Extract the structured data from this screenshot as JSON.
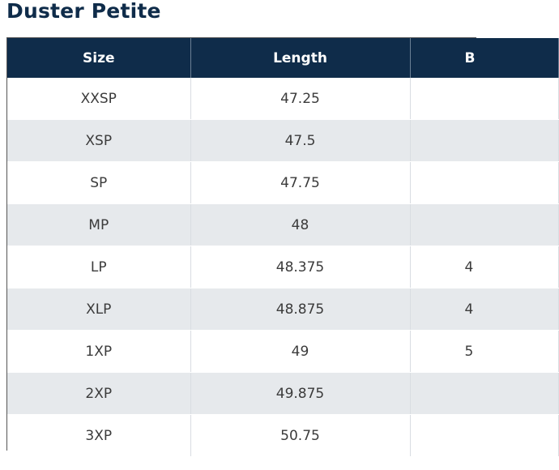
{
  "title": "Duster Petite",
  "table": {
    "headers": [
      "Size",
      "Length",
      "B"
    ],
    "rows": [
      {
        "size": "XXSP",
        "length": "47.25",
        "col3": ""
      },
      {
        "size": "XSP",
        "length": "47.5",
        "col3": ""
      },
      {
        "size": "SP",
        "length": "47.75",
        "col3": ""
      },
      {
        "size": "MP",
        "length": "48",
        "col3": ""
      },
      {
        "size": "LP",
        "length": "48.375",
        "col3": "4"
      },
      {
        "size": "XLP",
        "length": "48.875",
        "col3": "4"
      },
      {
        "size": "1XP",
        "length": "49",
        "col3": "5"
      },
      {
        "size": "2XP",
        "length": "49.875",
        "col3": ""
      },
      {
        "size": "3XP",
        "length": "50.75",
        "col3": ""
      }
    ]
  },
  "colors": {
    "header_bg": "#0f2c4a",
    "title": "#0f2c4a",
    "stripe": "#e6e9ec"
  }
}
